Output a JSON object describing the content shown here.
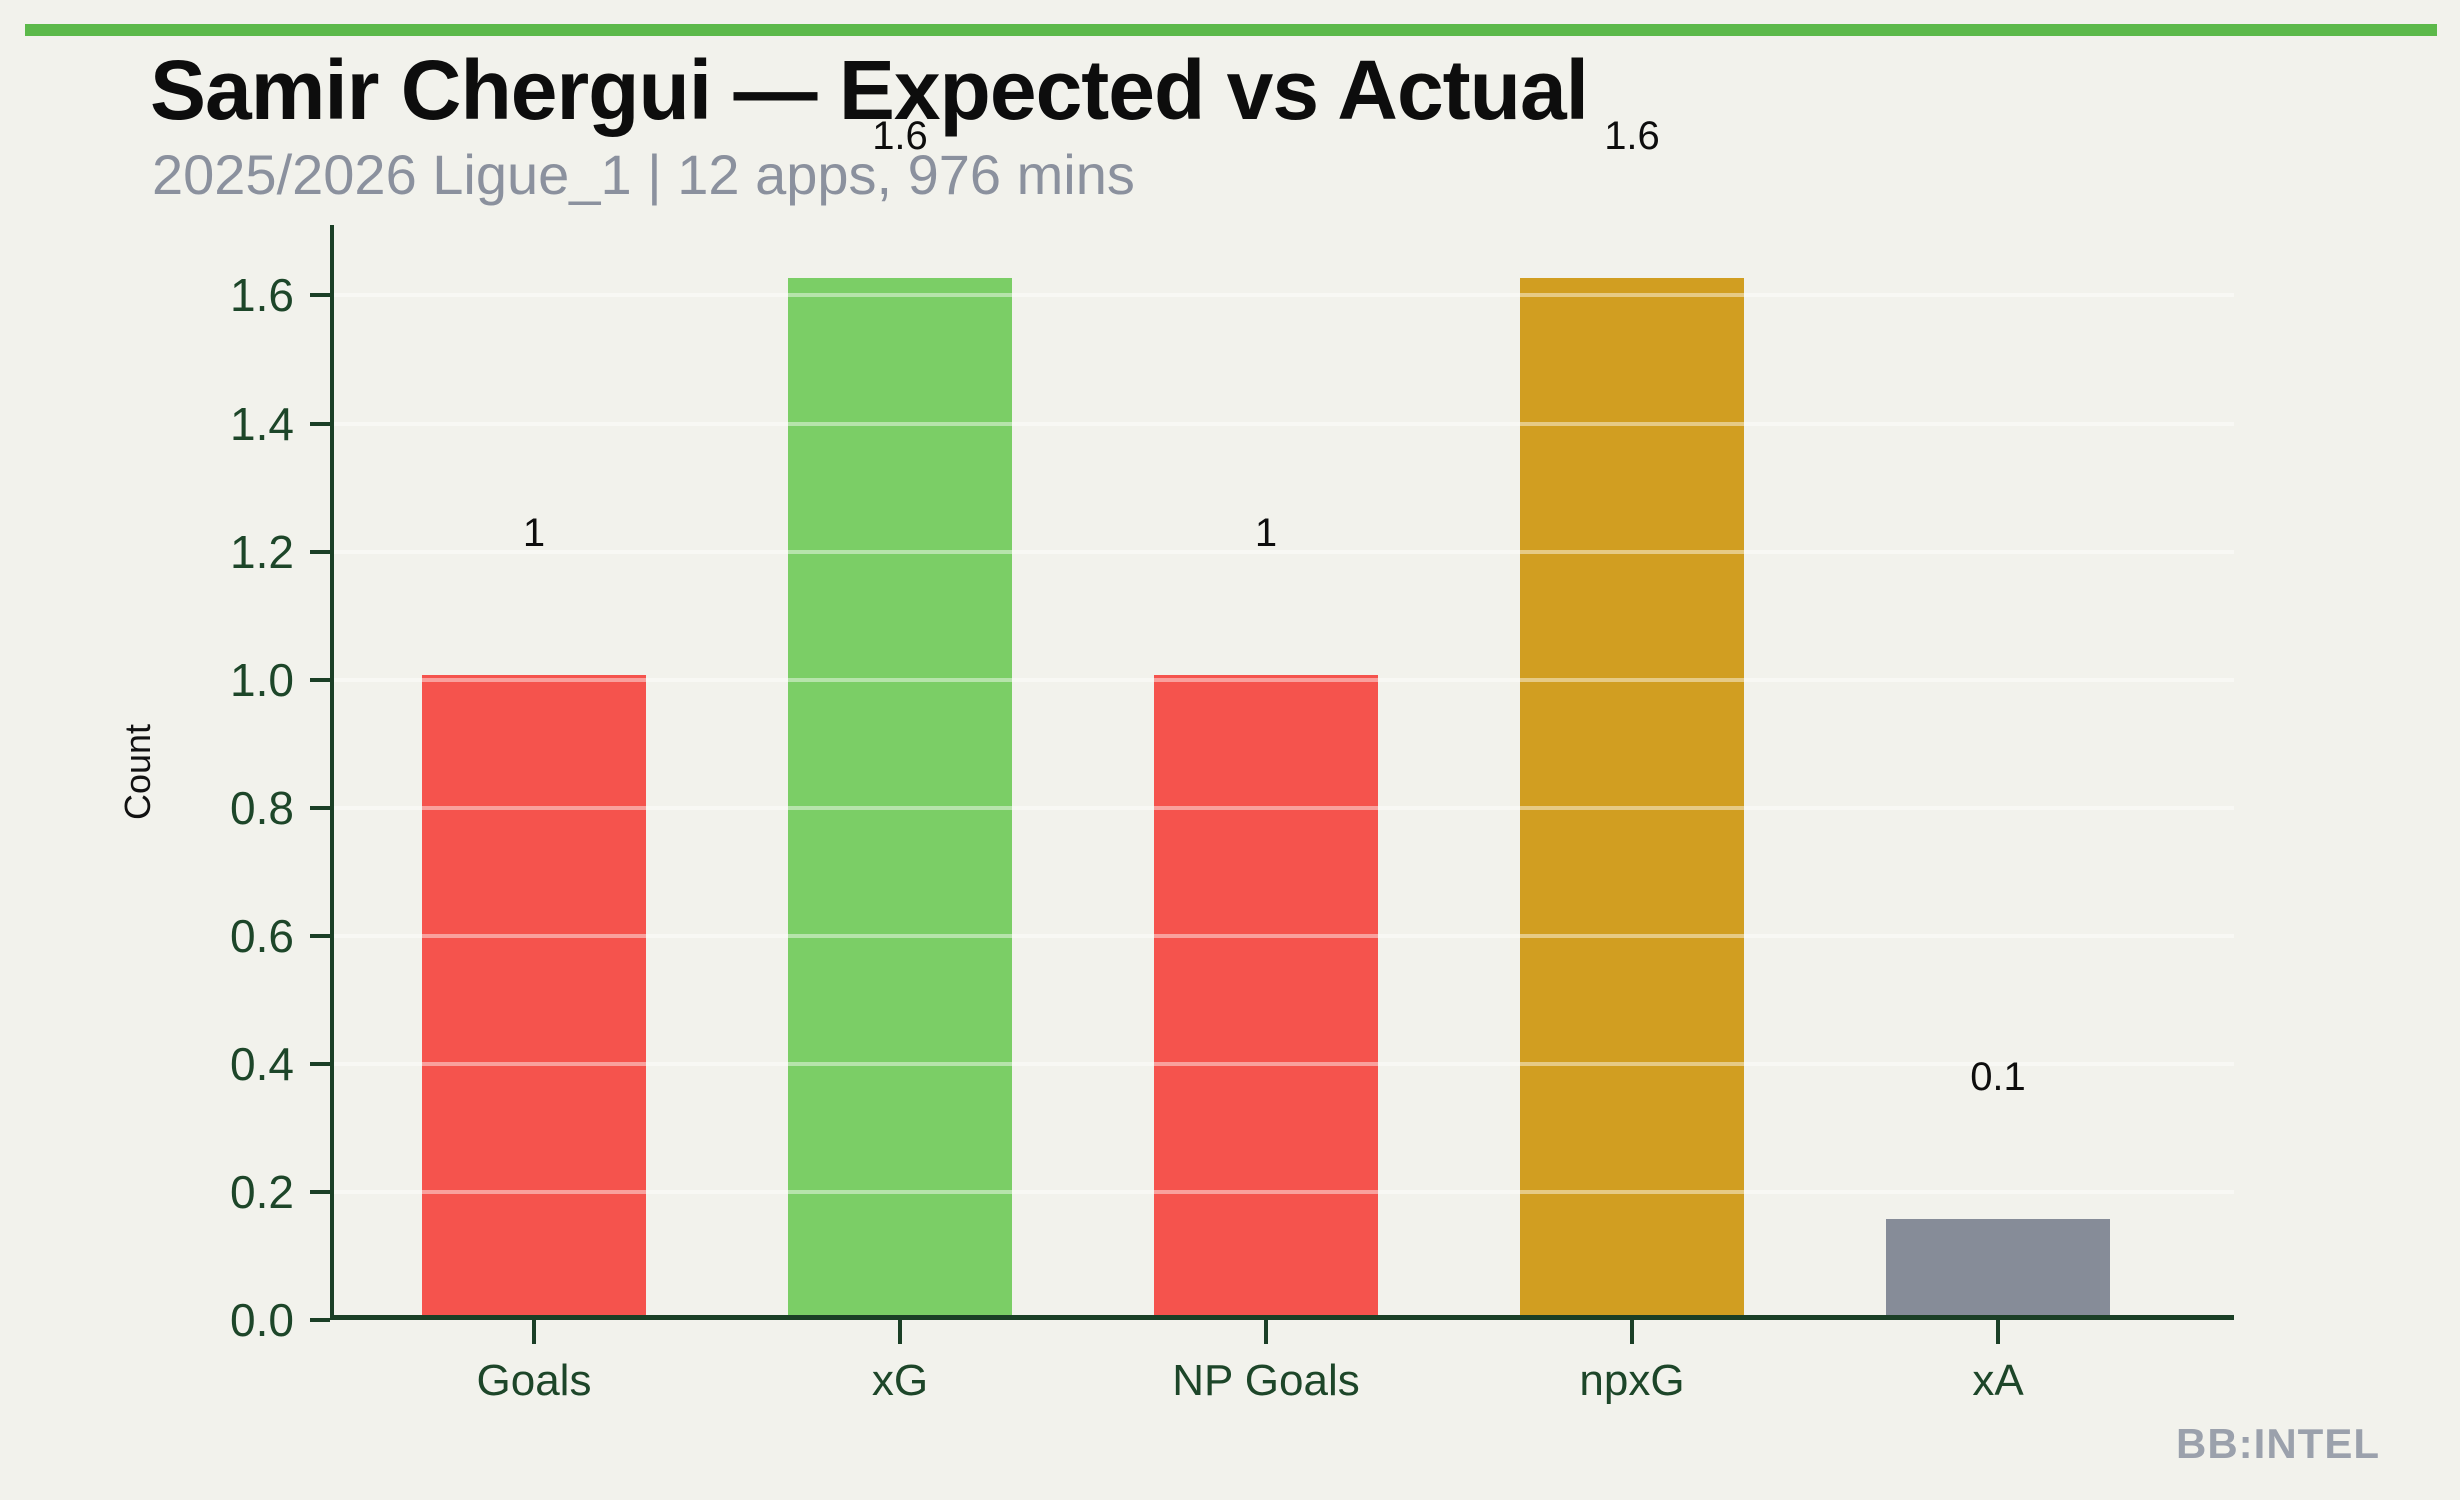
{
  "chart_data": {
    "type": "bar",
    "title": "Samir Chergui — Expected vs Actual",
    "subtitle": "2025/2026 Ligue_1 | 12 apps, 976 mins",
    "categories": [
      "Goals",
      "xG",
      "NP Goals",
      "npxG",
      "xA"
    ],
    "values": [
      1.0,
      1.62,
      1.0,
      1.62,
      0.15
    ],
    "bar_labels": [
      "1",
      "1.6",
      "1",
      "1.6",
      "0.1"
    ],
    "bar_colors": [
      "#f5534d",
      "#7bce66",
      "#f5534d",
      "#d19e21",
      "#868c98"
    ],
    "xlabel": "",
    "ylabel": "Count",
    "ylim": [
      0,
      1.71
    ],
    "ytick_values": [
      0.0,
      0.2,
      0.4,
      0.6,
      0.8,
      1.0,
      1.2,
      1.4,
      1.6
    ],
    "ytick_labels": [
      "0.0",
      "0.2",
      "0.4",
      "0.6",
      "0.8",
      "1.0",
      "1.2",
      "1.4",
      "1.6"
    ],
    "grid": "horizontal translucent white lines drawn over bars",
    "legend_position": "none",
    "value_label_position": "above bars"
  },
  "branding": {
    "watermark": "BB:INTEL"
  },
  "colors": {
    "background": "#f2f2ec",
    "top_strip": "#5cb94a",
    "axis": "#1b3f26",
    "tick_text": "#1d4629",
    "subtitle_text": "#8b919e",
    "watermark_text": "#9ba1ac"
  }
}
